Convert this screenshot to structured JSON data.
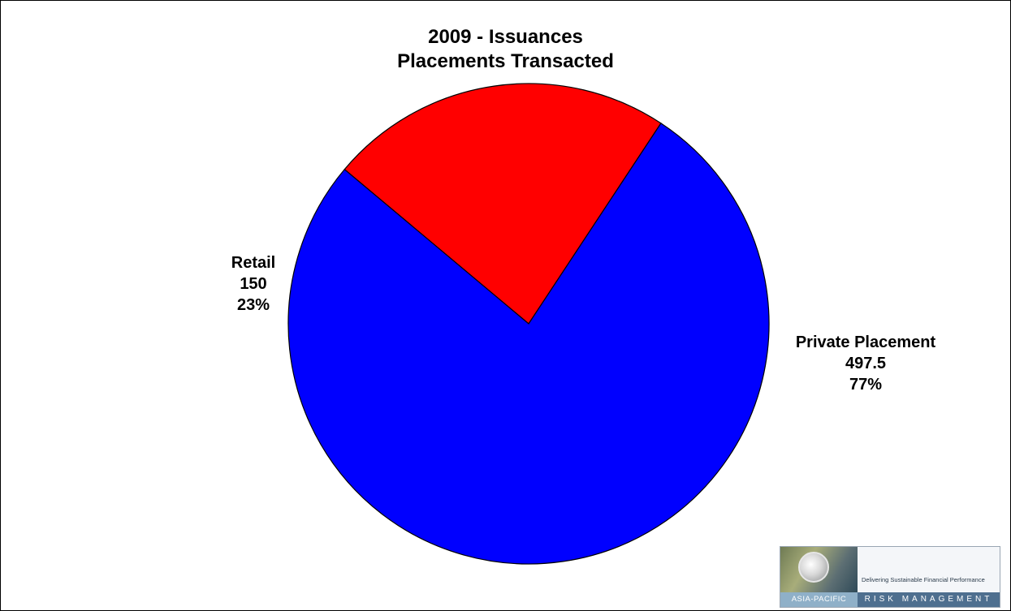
{
  "chart_data": {
    "type": "pie",
    "title": [
      "2009 - Issuances",
      "Placements Transacted"
    ],
    "slices": [
      {
        "label": "Retail",
        "value": 150,
        "percent": "23%",
        "color": "#ff0000"
      },
      {
        "label": "Private Placement",
        "value": 497.5,
        "percent": "77%",
        "color": "#0000ff"
      }
    ],
    "start_angle_deg": 140,
    "direction": "clockwise",
    "legend": "none",
    "data_labels": "outside"
  },
  "logo": {
    "tagline": "Delivering Sustainable Financial Performance",
    "region": "ASIA-PACIFIC",
    "brand": "RISK MANAGEMENT"
  }
}
